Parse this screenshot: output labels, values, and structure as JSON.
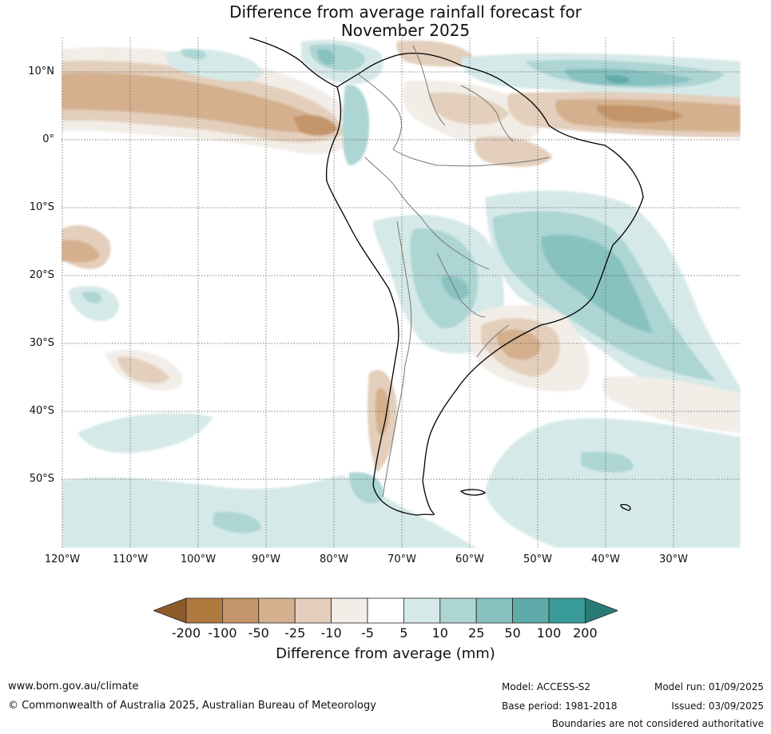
{
  "title_line1": "Difference from average rainfall forecast for",
  "title_line2": "November 2025",
  "latitude_labels": [
    "10°N",
    "0°",
    "10°S",
    "20°S",
    "30°S",
    "40°S",
    "50°S"
  ],
  "longitude_labels": [
    "120°W",
    "110°W",
    "100°W",
    "90°W",
    "80°W",
    "70°W",
    "60°W",
    "50°W",
    "40°W",
    "30°W"
  ],
  "colorbar": {
    "ticks": [
      "-200",
      "-100",
      "-50",
      "-25",
      "-10",
      "-5",
      "5",
      "10",
      "25",
      "50",
      "100",
      "200"
    ],
    "colors": [
      "#8c5a2b",
      "#b07a3f",
      "#c4956a",
      "#d4b08e",
      "#e3cfbc",
      "#f2ede7",
      "#ffffff",
      "#d5e9e8",
      "#acd5d4",
      "#87c2c1",
      "#5eabaa",
      "#399b99",
      "#2a7a78"
    ],
    "label": "Difference from average (mm)"
  },
  "footer": {
    "url": "www.bom.gov.au/climate",
    "copyright": "© Commonwealth of Australia 2025, Australian Bureau of Meteorology",
    "model": "Model: ACCESS-S2",
    "base_period": "Base period: 1981-2018",
    "model_run": "Model run: 01/09/2025",
    "issued": "Issued: 03/09/2025",
    "disclaimer": "Boundaries are not considered authoritative"
  }
}
